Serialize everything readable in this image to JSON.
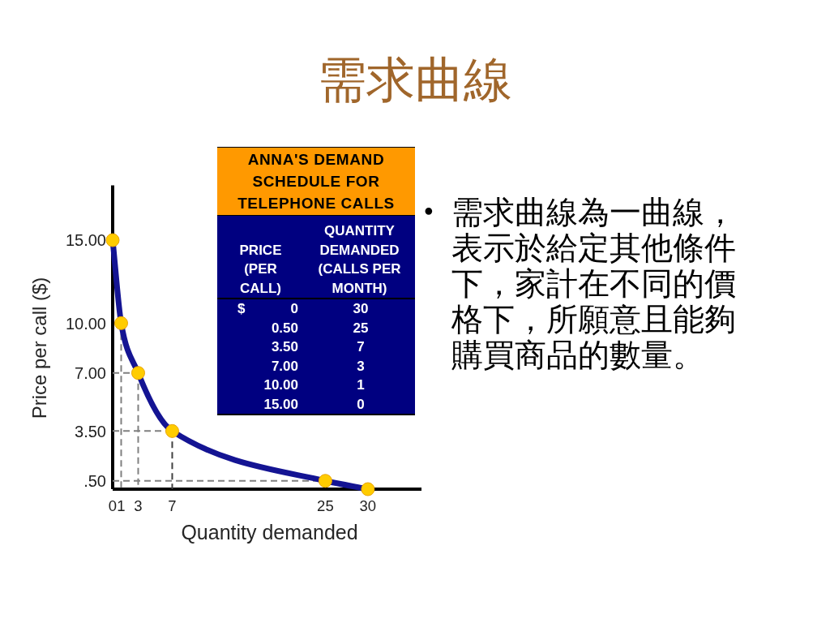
{
  "chart_data": [
    {
      "type": "line",
      "title": "需求曲線",
      "xlabel": "Quantity demanded",
      "ylabel": "Price per call ($)",
      "annotations": [
        "•",
        "需求曲線為一曲線，表示於給定其他條件下，家計在不同的價格下，所願意且能夠購買商品的數量。"
      ],
      "xlim": [
        0,
        36.3
      ],
      "ylim": [
        0,
        18.3
      ],
      "xticks": [
        0,
        1,
        3,
        7,
        25,
        30
      ],
      "yticks": [
        {
          "value": 0.5,
          "label": ".50"
        },
        {
          "value": 3.5,
          "label": "3.50"
        },
        {
          "value": 7,
          "label": "7.00"
        },
        {
          "value": 10,
          "label": "10.00"
        },
        {
          "value": 15,
          "label": "15.00"
        }
      ],
      "series": [
        {
          "type": "line",
          "x": [
            0,
            3
          ],
          "values": [
            7,
            7
          ],
          "color": "#808080",
          "line_style": "dashed"
        },
        {
          "type": "line",
          "x": [
            0,
            7
          ],
          "values": [
            3.5,
            3.5
          ],
          "color": "#808080",
          "line_style": "dashed"
        },
        {
          "type": "line",
          "x": [
            0,
            25
          ],
          "values": [
            0.5,
            0.5
          ],
          "color": "#808080",
          "line_style": "dashed"
        },
        {
          "type": "line",
          "x": [
            1,
            1
          ],
          "values": [
            10,
            0
          ],
          "color": "#808080",
          "line_style": "dashed"
        },
        {
          "type": "line",
          "x": [
            3,
            3
          ],
          "values": [
            7,
            0
          ],
          "color": "#808080",
          "line_style": "dashed"
        },
        {
          "type": "line",
          "x": [
            7,
            7
          ],
          "values": [
            3.5,
            0
          ],
          "color": "#404040",
          "line_style": "dashed"
        },
        {
          "type": "line",
          "x": [
            0,
            1,
            3,
            7,
            25,
            30
          ],
          "values": [
            15,
            10,
            7,
            3.5,
            0.5,
            0
          ],
          "color": "#141493",
          "line_style": "solid"
        },
        {
          "type": "scatter",
          "x": [
            0,
            1,
            3,
            7,
            25,
            30
          ],
          "values": [
            15,
            10,
            7,
            3.5,
            0.5,
            0
          ],
          "color": "#ffcc00",
          "marker": "circle"
        }
      ]
    },
    {
      "type": "other",
      "title": "ANNA'S DEMAND SCHEDULE FOR TELEPHONE CALLS",
      "annotations": [
        "PRICE (PER CALL)",
        "QUANTITY DEMANDED (CALLS PER MONTH)",
        "$ 0",
        "30",
        "0.50",
        "25",
        "3.50",
        "7",
        "7.00",
        "3",
        "10.00",
        "1",
        "15.00",
        "0"
      ]
    }
  ]
}
